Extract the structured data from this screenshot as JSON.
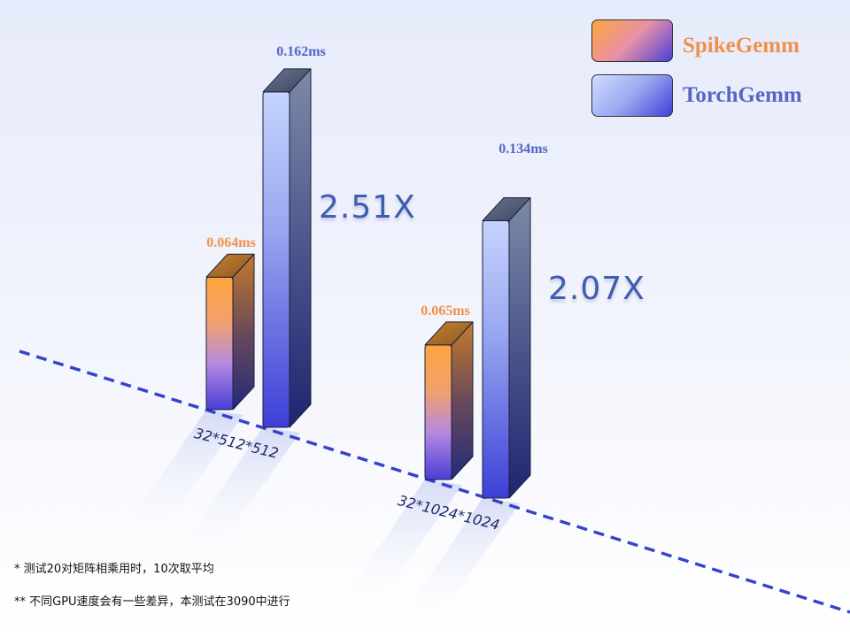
{
  "chart_data": {
    "type": "bar",
    "categories": [
      "32*512*512",
      "32*1024*1024"
    ],
    "series": [
      {
        "name": "SpikeGemm",
        "values": [
          0.064,
          0.065
        ],
        "labels": [
          "0.064ms",
          "0.065ms"
        ]
      },
      {
        "name": "TorchGemm",
        "values": [
          0.162,
          0.134
        ],
        "labels": [
          "0.162ms",
          "0.134ms"
        ]
      }
    ],
    "speedups": [
      "2.51X",
      "2.07X"
    ],
    "unit": "ms",
    "legend_placement": "top-right",
    "grid": false,
    "colors": {
      "spike_top": "#ffa43c",
      "spike_bottom": "#4a3fd8",
      "spike_label": "#f0914a",
      "torch_top": "#c5d3ff",
      "torch_bottom": "#3d3fd6",
      "torch_label": "#5566c4",
      "axis": "#3344cc"
    }
  },
  "footnotes": [
    "* 测试20对矩阵相乘用时，10次取平均",
    "** 不同GPU速度会有一些差异，本测试在3090中进行"
  ]
}
